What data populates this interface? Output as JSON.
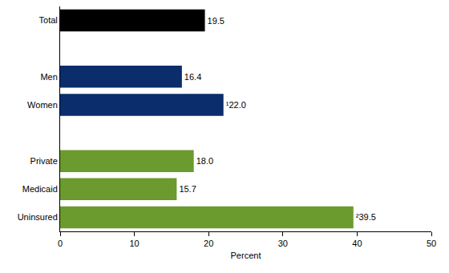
{
  "chart_data": {
    "type": "bar",
    "orientation": "horizontal",
    "categories": [
      "Total",
      null,
      "Men",
      "Women",
      null,
      "Private",
      "Medicaid",
      "Uninsured"
    ],
    "values": [
      19.5,
      null,
      16.4,
      22.0,
      null,
      18.0,
      15.7,
      39.5
    ],
    "value_labels": [
      "19.5",
      null,
      "16.4",
      "¹22.0",
      null,
      "18.0",
      "15.7",
      "²39.5"
    ],
    "colors": [
      "#000000",
      null,
      "#0b2d6b",
      "#0b2d6b",
      null,
      "#6b9a2f",
      "#6b9a2f",
      "#6b9a2f"
    ],
    "x_label": "Percent",
    "xlim": [
      0,
      50
    ],
    "xticks": [
      0,
      10,
      20,
      30,
      40,
      50
    ],
    "grid": false,
    "data_labels": true
  }
}
